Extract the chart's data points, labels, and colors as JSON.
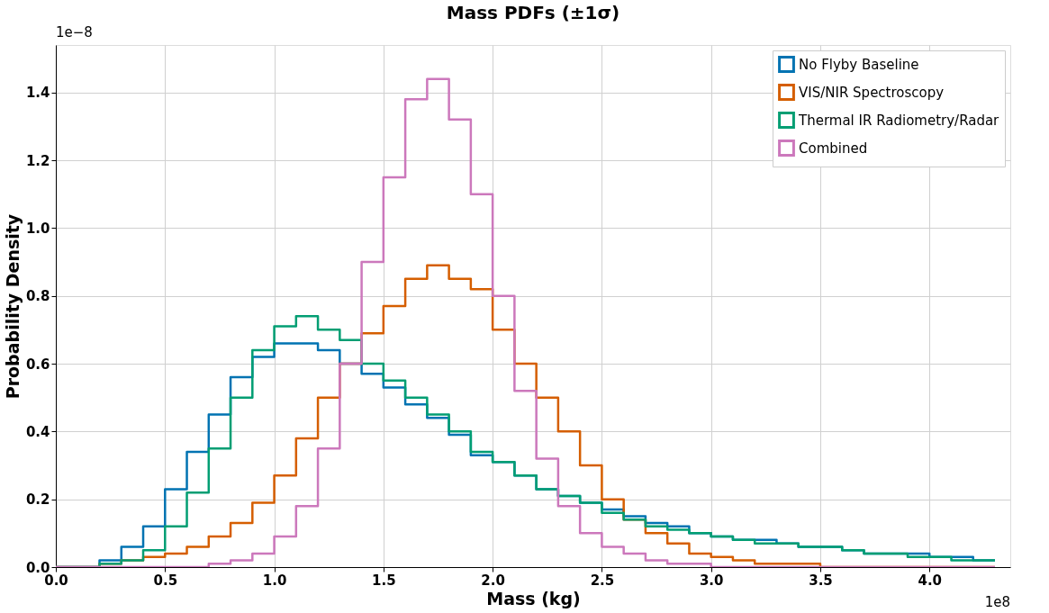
{
  "chart_data": {
    "type": "histogram",
    "title": "Mass PDFs (±1σ)",
    "xlabel": "Mass (kg)",
    "ylabel": "Probability Density",
    "annotations": [
      "1e−8",
      "1e8"
    ],
    "bins": [
      0,
      0.1,
      0.2,
      0.3,
      0.4,
      0.5,
      0.6,
      0.7,
      0.8,
      0.9,
      1.0,
      1.1,
      1.2,
      1.3,
      1.4,
      1.5,
      1.6,
      1.7,
      1.8,
      1.9,
      2.0,
      2.1,
      2.2,
      2.3,
      2.4,
      2.5,
      2.6,
      2.7,
      2.8,
      2.9,
      3.0,
      3.1,
      3.2,
      3.3,
      3.4,
      3.5,
      3.6,
      3.7,
      3.8,
      3.9,
      4.0,
      4.1,
      4.2,
      4.3
    ],
    "series": [
      {
        "name": "No Flyby Baseline",
        "color": "#0173b2",
        "values": [
          0,
          0.0,
          0.02,
          0.06,
          0.12,
          0.23,
          0.34,
          0.45,
          0.56,
          0.62,
          0.66,
          0.66,
          0.64,
          0.6,
          0.57,
          0.53,
          0.48,
          0.44,
          0.39,
          0.33,
          0.31,
          0.27,
          0.23,
          0.21,
          0.19,
          0.17,
          0.15,
          0.13,
          0.12,
          0.1,
          0.09,
          0.08,
          0.08,
          0.07,
          0.06,
          0.06,
          0.05,
          0.04,
          0.04,
          0.04,
          0.03,
          0.03,
          0.02
        ]
      },
      {
        "name": "VIS/NIR Spectroscopy",
        "color": "#d55e00",
        "values": [
          0,
          0.0,
          0.01,
          0.02,
          0.03,
          0.04,
          0.06,
          0.09,
          0.13,
          0.19,
          0.27,
          0.38,
          0.5,
          0.6,
          0.69,
          0.77,
          0.85,
          0.89,
          0.85,
          0.82,
          0.7,
          0.6,
          0.5,
          0.4,
          0.3,
          0.2,
          0.14,
          0.1,
          0.07,
          0.04,
          0.03,
          0.02,
          0.01,
          0.01,
          0.01,
          0.0,
          0.0,
          0.0,
          0.0,
          0.0,
          0.0,
          0.0,
          0.0
        ]
      },
      {
        "name": "Thermal IR Radiometry/Radar",
        "color": "#029e73",
        "values": [
          0,
          0.0,
          0.01,
          0.02,
          0.05,
          0.12,
          0.22,
          0.35,
          0.5,
          0.64,
          0.71,
          0.74,
          0.7,
          0.67,
          0.6,
          0.55,
          0.5,
          0.45,
          0.4,
          0.34,
          0.31,
          0.27,
          0.23,
          0.21,
          0.19,
          0.16,
          0.14,
          0.12,
          0.11,
          0.1,
          0.09,
          0.08,
          0.07,
          0.07,
          0.06,
          0.06,
          0.05,
          0.04,
          0.04,
          0.03,
          0.03,
          0.02,
          0.02
        ]
      },
      {
        "name": "Combined",
        "color": "#cc78bc",
        "values": [
          0,
          0,
          0,
          0,
          0,
          0,
          0.0,
          0.01,
          0.02,
          0.04,
          0.09,
          0.18,
          0.35,
          0.6,
          0.9,
          1.15,
          1.38,
          1.44,
          1.32,
          1.1,
          0.8,
          0.52,
          0.32,
          0.18,
          0.1,
          0.06,
          0.04,
          0.02,
          0.01,
          0.01,
          0,
          0,
          0,
          0,
          0,
          0,
          0,
          0,
          0,
          0,
          0,
          0,
          0
        ]
      }
    ],
    "xlim": [
      0,
      4.37
    ],
    "ylim": [
      0,
      1.54
    ],
    "xticks": [
      {
        "value": 0,
        "label": "0.0"
      },
      0.5,
      {
        "value": 1,
        "label": "1.0"
      },
      1.5,
      {
        "value": 2,
        "label": "2.0"
      },
      2.5,
      {
        "value": 3,
        "label": "3.0"
      },
      3.5,
      {
        "value": 4,
        "label": "4.0"
      }
    ],
    "yticks": [
      {
        "value": 0,
        "label": "0.0"
      },
      0.2,
      0.4,
      0.6,
      0.8,
      {
        "value": 1,
        "label": "1.0"
      },
      1.2,
      1.4
    ],
    "grid": true,
    "legend": "top right",
    "line_style": "solid"
  }
}
